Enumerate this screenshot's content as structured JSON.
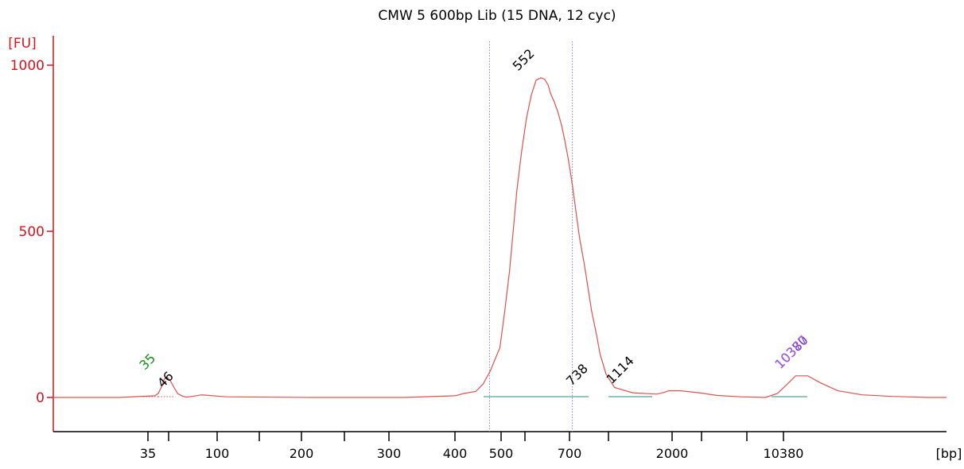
{
  "chart_data": {
    "type": "line",
    "title": "CMW 5 600bp Lib (15 DNA, 12 cyc)",
    "ylabel": "[FU]",
    "xlabel": "[bp]",
    "ylim": [
      -100,
      1050
    ],
    "y_ticks": [
      0,
      500,
      1000
    ],
    "x_ticks": [
      "35",
      "",
      "100",
      "",
      "200",
      "",
      "300",
      "400",
      "500",
      "",
      "700",
      "",
      "2000",
      "",
      "",
      "10380"
    ],
    "series_color": "#d9534f",
    "peak_labels": [
      {
        "label": "35",
        "bp": 35,
        "fu": 62,
        "color": "#1a8c1a"
      },
      {
        "label": "46",
        "bp": 46,
        "fu": 8,
        "color": "#000000"
      },
      {
        "label": "552",
        "bp": 552,
        "fu": 962,
        "color": "#000000"
      },
      {
        "label": "738",
        "bp": 738,
        "fu": 14,
        "color": "#000000"
      },
      {
        "label": "1114",
        "bp": 1114,
        "fu": 20,
        "color": "#000000"
      },
      {
        "label": "10380",
        "bp": 10380,
        "fu": 65,
        "color": "#7030c8"
      },
      {
        "label": "10377",
        "bp": 10377,
        "fu": 65,
        "color": "#9b59d6"
      }
    ],
    "region_markers_bp": [
      473,
      721
    ],
    "series": [
      {
        "x": [
          1.0,
          6.5,
          9.4,
          9.7,
          10.0,
          10.2,
          10.4,
          10.7,
          11.0,
          11.3,
          11.7,
          12.0,
          12.5,
          13.3,
          15.3,
          22.3,
          30.0,
          34.3,
          35.0,
          36.0,
          36.6,
          37.2,
          38.0,
          38.4,
          38.8,
          39.1,
          39.4,
          39.8,
          40.2,
          40.6,
          41.0,
          41.4,
          41.7,
          42.0,
          42.2,
          42.5,
          42.8,
          43.1,
          43.4,
          43.7,
          44.0,
          44.3,
          44.6,
          45.0,
          45.3,
          45.6,
          46.0,
          46.3,
          46.8,
          47.5,
          49.0,
          51.0,
          51.5,
          52.0,
          53.0,
          54.5,
          56.0,
          58.0,
          60.0,
          61.0,
          61.8,
          62.5,
          63.5,
          64.5,
          66.0,
          68.0,
          70.5,
          73.5,
          75.0
        ],
        "y": [
          0,
          0,
          5,
          12,
          35,
          55,
          62,
          50,
          30,
          12,
          4,
          1,
          3,
          8,
          2,
          0,
          0,
          5,
          12,
          18,
          40,
          80,
          150,
          260,
          380,
          500,
          620,
          740,
          840,
          910,
          955,
          962,
          958,
          940,
          915,
          890,
          860,
          820,
          770,
          710,
          640,
          560,
          480,
          400,
          330,
          260,
          190,
          130,
          70,
          30,
          14,
          10,
          14,
          20,
          20,
          14,
          6,
          2,
          0,
          12,
          40,
          65,
          65,
          45,
          20,
          8,
          3,
          0,
          0
        ]
      }
    ]
  }
}
